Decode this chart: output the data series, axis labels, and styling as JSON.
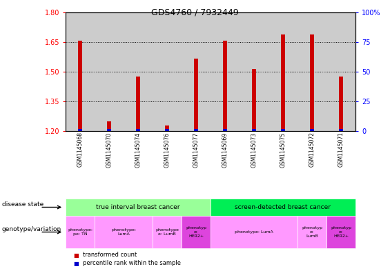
{
  "title": "GDS4760 / 7932449",
  "samples": [
    "GSM1145068",
    "GSM1145070",
    "GSM1145074",
    "GSM1145076",
    "GSM1145077",
    "GSM1145069",
    "GSM1145073",
    "GSM1145075",
    "GSM1145072",
    "GSM1145071"
  ],
  "transformed_count": [
    1.657,
    1.248,
    1.475,
    1.228,
    1.565,
    1.657,
    1.515,
    1.688,
    1.688,
    1.475
  ],
  "percentile_rank": [
    2,
    2,
    2,
    2,
    2,
    2,
    2,
    2,
    2,
    2
  ],
  "y_min": 1.2,
  "y_max": 1.8,
  "y_ticks_left": [
    1.2,
    1.35,
    1.5,
    1.65,
    1.8
  ],
  "y_ticks_right": [
    0,
    25,
    50,
    75,
    100
  ],
  "bar_color": "#cc0000",
  "percentile_color": "#0000cc",
  "sample_bg_color": "#cccccc",
  "plot_bg_color": "#ffffff",
  "disease_state_groups": [
    {
      "label": "true interval breast cancer",
      "start": 0,
      "end": 5,
      "color": "#99ff99"
    },
    {
      "label": "screen-detected breast cancer",
      "start": 5,
      "end": 10,
      "color": "#00ee55"
    }
  ],
  "genotype_groups": [
    {
      "label": "phenotype:\npe: TN",
      "start": 0,
      "end": 1,
      "color": "#ff99ff"
    },
    {
      "label": "phenotype:\nLumA",
      "start": 1,
      "end": 3,
      "color": "#ff99ff"
    },
    {
      "label": "phenotype\ne: LumB",
      "start": 3,
      "end": 4,
      "color": "#ff99ff"
    },
    {
      "label": "phenotyp\ne:\nHER2+",
      "start": 4,
      "end": 5,
      "color": "#dd44dd"
    },
    {
      "label": "phenotype: LumA",
      "start": 5,
      "end": 8,
      "color": "#ff99ff"
    },
    {
      "label": "phenotyp\ne:\nLumB",
      "start": 8,
      "end": 9,
      "color": "#ff99ff"
    },
    {
      "label": "phenotyp\ne:\nHER2+",
      "start": 9,
      "end": 10,
      "color": "#dd44dd"
    }
  ]
}
